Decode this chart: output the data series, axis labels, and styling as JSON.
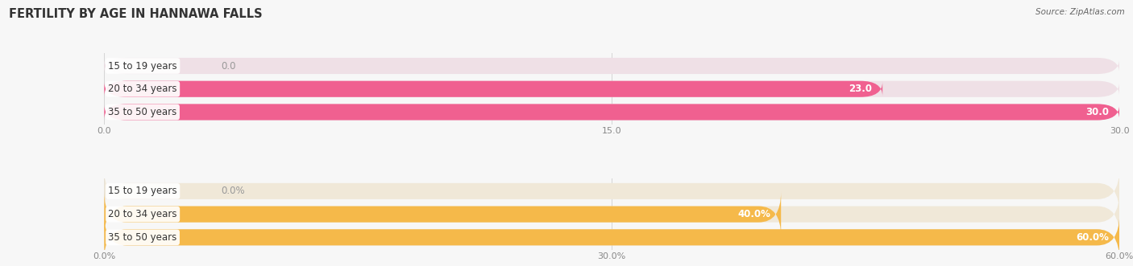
{
  "title": "FERTILITY BY AGE IN HANNAWA FALLS",
  "source": "Source: ZipAtlas.com",
  "top_chart": {
    "categories": [
      "15 to 19 years",
      "20 to 34 years",
      "35 to 50 years"
    ],
    "values": [
      0.0,
      23.0,
      30.0
    ],
    "max_value": 30.0,
    "tick_values": [
      0.0,
      15.0,
      30.0
    ],
    "tick_labels": [
      "0.0",
      "15.0",
      "30.0"
    ],
    "bar_color": "#F06090",
    "bar_bg_color": "#EFE0E6",
    "zero_label_color": "#999999",
    "label_suffix": ""
  },
  "bottom_chart": {
    "categories": [
      "15 to 19 years",
      "20 to 34 years",
      "35 to 50 years"
    ],
    "values": [
      0.0,
      40.0,
      60.0
    ],
    "max_value": 60.0,
    "tick_values": [
      0.0,
      30.0,
      60.0
    ],
    "tick_labels": [
      "0.0%",
      "30.0%",
      "60.0%"
    ],
    "bar_color": "#F5B94A",
    "bar_bg_color": "#F0E8D8",
    "zero_label_color": "#999999",
    "label_suffix": "%"
  },
  "bar_height": 0.7,
  "label_fontsize": 8.5,
  "tick_fontsize": 8.0,
  "title_fontsize": 10.5,
  "source_fontsize": 7.5,
  "category_label_fontsize": 8.5,
  "background_color": "#f7f7f7",
  "grid_color": "#cccccc",
  "title_color": "#333333",
  "source_color": "#666666",
  "tick_color": "#888888"
}
